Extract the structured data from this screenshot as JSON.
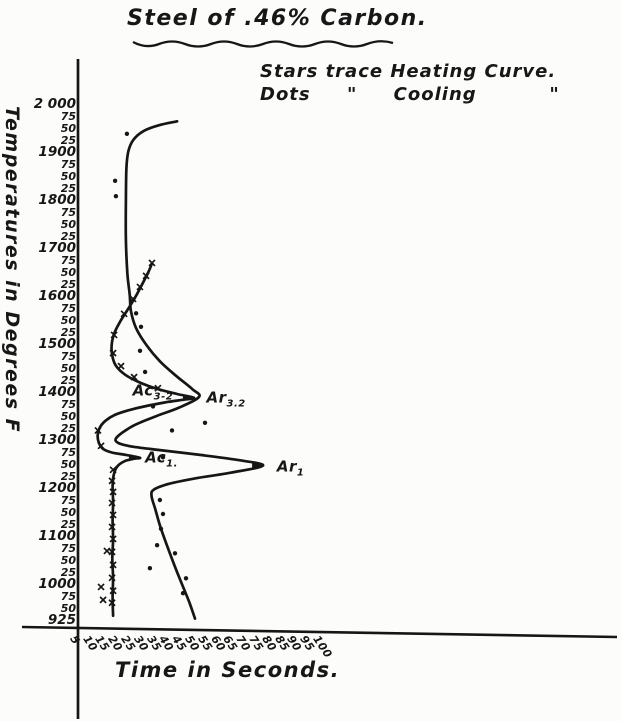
{
  "colors": {
    "ink": "#161616",
    "paper": "#fcfcfa"
  },
  "figure": {
    "title": "Steel of .46% Carbon.",
    "legend_line1": "Stars trace Heating Curve.",
    "legend_line2": "Dots     \"     Cooling          \"",
    "x_axis_label": "Time in Seconds.",
    "y_axis_label": "Temperatures in Degrees F"
  },
  "chart_data": {
    "type": "line",
    "title": "Steel of .46% Carbon.",
    "subtitle": [
      "Stars trace Heating Curve.",
      "Dots \" Cooling \""
    ],
    "xlabel": "Time in Seconds.",
    "ylabel": "Temperatures in Degrees F",
    "xlim": [
      0,
      115
    ],
    "ylim": [
      925,
      2000
    ],
    "grid": false,
    "x_ticks": [
      5,
      10,
      15,
      20,
      25,
      30,
      35,
      40,
      45,
      50,
      55,
      60,
      65,
      70,
      75,
      80,
      85,
      90,
      95,
      100
    ],
    "y_tick_labels": [
      "2 000",
      "75",
      "50",
      "25",
      "1900",
      "75",
      "50",
      "25",
      "1800",
      "75",
      "50",
      "25",
      "1700",
      "75",
      "50",
      "25",
      "1600",
      "75",
      "50",
      "25",
      "1500",
      "75",
      "50",
      "25",
      "1400",
      "75",
      "50",
      "25",
      "1300",
      "75",
      "50",
      "25",
      "1200",
      "75",
      "50",
      "25",
      "1100",
      "75",
      "50",
      "25",
      "1000",
      "75",
      "50",
      "925"
    ],
    "y_tick_step_degF": 25,
    "series": [
      {
        "name": "Cooling curve",
        "marker": "dot",
        "points": [
          [
            43,
            1966
          ],
          [
            36,
            1958
          ],
          [
            30,
            1946
          ],
          [
            26,
            1928
          ],
          [
            24,
            1904
          ],
          [
            23.2,
            1868
          ],
          [
            23,
            1800
          ],
          [
            23,
            1720
          ],
          [
            23.6,
            1648
          ],
          [
            24.5,
            1605
          ],
          [
            25,
            1570
          ],
          [
            27,
            1535
          ],
          [
            31,
            1500
          ],
          [
            36.5,
            1465
          ],
          [
            43,
            1434
          ],
          [
            49,
            1408
          ],
          [
            51.6,
            1392
          ],
          [
            44,
            1370
          ],
          [
            35,
            1352
          ],
          [
            26,
            1332
          ],
          [
            19.5,
            1308
          ],
          [
            20,
            1296
          ],
          [
            26,
            1288
          ],
          [
            38,
            1280
          ],
          [
            52,
            1271
          ],
          [
            66,
            1261
          ],
          [
            76.6,
            1249
          ],
          [
            64,
            1234
          ],
          [
            50,
            1222
          ],
          [
            40,
            1211
          ],
          [
            34,
            1199
          ],
          [
            33,
            1186
          ],
          [
            34.5,
            1158
          ],
          [
            36.5,
            1121
          ],
          [
            39.5,
            1076
          ],
          [
            43.5,
            1020
          ],
          [
            47.5,
            968
          ],
          [
            50,
            930
          ]
        ]
      },
      {
        "name": "Heating curve",
        "marker": "star",
        "points": [
          [
            18,
            936
          ],
          [
            17.8,
            975
          ],
          [
            18,
            1015
          ],
          [
            17.7,
            1055
          ],
          [
            18,
            1095
          ],
          [
            17.8,
            1135
          ],
          [
            18,
            1172
          ],
          [
            17.8,
            1205
          ],
          [
            18.2,
            1228
          ],
          [
            19.5,
            1246
          ],
          [
            22.5,
            1258
          ],
          [
            26,
            1263
          ],
          [
            28.5,
            1265
          ],
          [
            23,
            1271
          ],
          [
            17.5,
            1276
          ],
          [
            14,
            1284
          ],
          [
            12.4,
            1297
          ],
          [
            12,
            1312
          ],
          [
            12.8,
            1328
          ],
          [
            15,
            1342
          ],
          [
            18.5,
            1354
          ],
          [
            24,
            1364
          ],
          [
            31,
            1373
          ],
          [
            39,
            1381
          ],
          [
            45.5,
            1386
          ],
          [
            49.6,
            1390
          ],
          [
            43,
            1398
          ],
          [
            35,
            1409
          ],
          [
            28,
            1423
          ],
          [
            22.5,
            1439
          ],
          [
            19,
            1458
          ],
          [
            17.6,
            1480
          ],
          [
            17.5,
            1503
          ],
          [
            18.6,
            1526
          ],
          [
            20.8,
            1549
          ],
          [
            23.5,
            1572
          ],
          [
            26.5,
            1598
          ],
          [
            29.5,
            1628
          ],
          [
            31.8,
            1652
          ],
          [
            33.2,
            1670
          ]
        ]
      }
    ],
    "markers": {
      "cooling_dots": [
        [
          23.4,
          1940
        ],
        [
          18.8,
          1842
        ],
        [
          19.1,
          1810
        ],
        [
          27,
          1566
        ],
        [
          28.9,
          1538
        ],
        [
          28.5,
          1488
        ],
        [
          30.5,
          1444
        ],
        [
          33.6,
          1372
        ],
        [
          53.9,
          1338
        ],
        [
          41,
          1322
        ],
        [
          37.5,
          1266
        ],
        [
          36.3,
          1177
        ],
        [
          37.5,
          1148
        ],
        [
          36.7,
          1117
        ],
        [
          35.2,
          1083
        ],
        [
          42.2,
          1066
        ],
        [
          32.4,
          1035
        ],
        [
          46.5,
          1014
        ],
        [
          45.3,
          983
        ]
      ],
      "heating_stars": [
        [
          33.2,
          1671
        ],
        [
          30.9,
          1644
        ],
        [
          28.5,
          1621
        ],
        [
          25.8,
          1596
        ],
        [
          22.3,
          1565
        ],
        [
          18.4,
          1521
        ],
        [
          18,
          1483
        ],
        [
          21.1,
          1456
        ],
        [
          26.2,
          1433
        ],
        [
          35.5,
          1410
        ],
        [
          12.1,
          1322
        ],
        [
          13.3,
          1290
        ],
        [
          18,
          1240
        ],
        [
          17.6,
          1217
        ],
        [
          18,
          1194
        ],
        [
          17.6,
          1171
        ],
        [
          18,
          1146
        ],
        [
          17.6,
          1121
        ],
        [
          18,
          1096
        ],
        [
          17.6,
          1069
        ],
        [
          18,
          1042
        ],
        [
          17.6,
          1015
        ],
        [
          18,
          988
        ],
        [
          17.6,
          963
        ],
        [
          15.6,
          1071
        ],
        [
          13.3,
          996
        ],
        [
          14.1,
          969
        ]
      ]
    },
    "annotations": [
      {
        "name": "Ac3-2",
        "base": "Ac",
        "sub": "3-2",
        "t": 41.5,
        "temp": 1403,
        "anchor": "end"
      },
      {
        "name": "Ar3-2",
        "base": "Ar",
        "sub": "3.2",
        "t": 54.5,
        "temp": 1387,
        "anchor": "start"
      },
      {
        "name": "Ac1",
        "base": "Ac",
        "sub": "1.",
        "t": 30.5,
        "temp": 1263,
        "anchor": "start"
      },
      {
        "name": "Ar1",
        "base": "Ar",
        "sub": "1",
        "t": 82,
        "temp": 1244,
        "anchor": "start"
      }
    ],
    "arrest_arrow_tips": [
      [
        49.6,
        1390
      ],
      [
        28.5,
        1265
      ],
      [
        76.6,
        1249
      ]
    ]
  }
}
